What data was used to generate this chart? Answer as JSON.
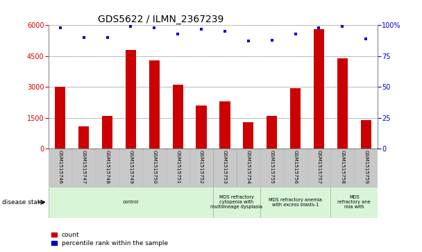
{
  "title": "GDS5622 / ILMN_2367239",
  "samples": [
    "GSM1515746",
    "GSM1515747",
    "GSM1515748",
    "GSM1515749",
    "GSM1515750",
    "GSM1515751",
    "GSM1515752",
    "GSM1515753",
    "GSM1515754",
    "GSM1515755",
    "GSM1515756",
    "GSM1515757",
    "GSM1515758",
    "GSM1515759"
  ],
  "counts": [
    3000,
    1100,
    1600,
    4800,
    4300,
    3100,
    2100,
    2300,
    1300,
    1600,
    2950,
    5800,
    4400,
    1400
  ],
  "percentiles": [
    98,
    90,
    90,
    99,
    98,
    93,
    97,
    95,
    87,
    88,
    93,
    98,
    99,
    89
  ],
  "ylim_left": [
    0,
    6000
  ],
  "ylim_right": [
    0,
    100
  ],
  "yticks_left": [
    0,
    1500,
    3000,
    4500,
    6000
  ],
  "yticks_right": [
    0,
    25,
    50,
    75,
    100
  ],
  "bar_color": "#cc0000",
  "dot_color": "#0000cc",
  "disease_groups": [
    {
      "label": "control",
      "start": 0,
      "end": 7,
      "color": "#d8f5d8"
    },
    {
      "label": "MDS refractory\ncytopenia with\nmultilineage dysplasia",
      "start": 7,
      "end": 9,
      "color": "#d8f5d8"
    },
    {
      "label": "MDS refractory anemia\nwith excess blasts-1",
      "start": 9,
      "end": 12,
      "color": "#d8f5d8"
    },
    {
      "label": "MDS\nrefractory ane\nmia with",
      "start": 12,
      "end": 14,
      "color": "#d8f5d8"
    }
  ],
  "disease_state_label": "disease state",
  "legend_count_label": "count",
  "legend_percentile_label": "percentile rank within the sample",
  "background_color": "#ffffff",
  "tick_bg_color": "#c8c8c8",
  "title_fontsize": 10,
  "label_fontsize": 6,
  "tick_fontsize": 7
}
